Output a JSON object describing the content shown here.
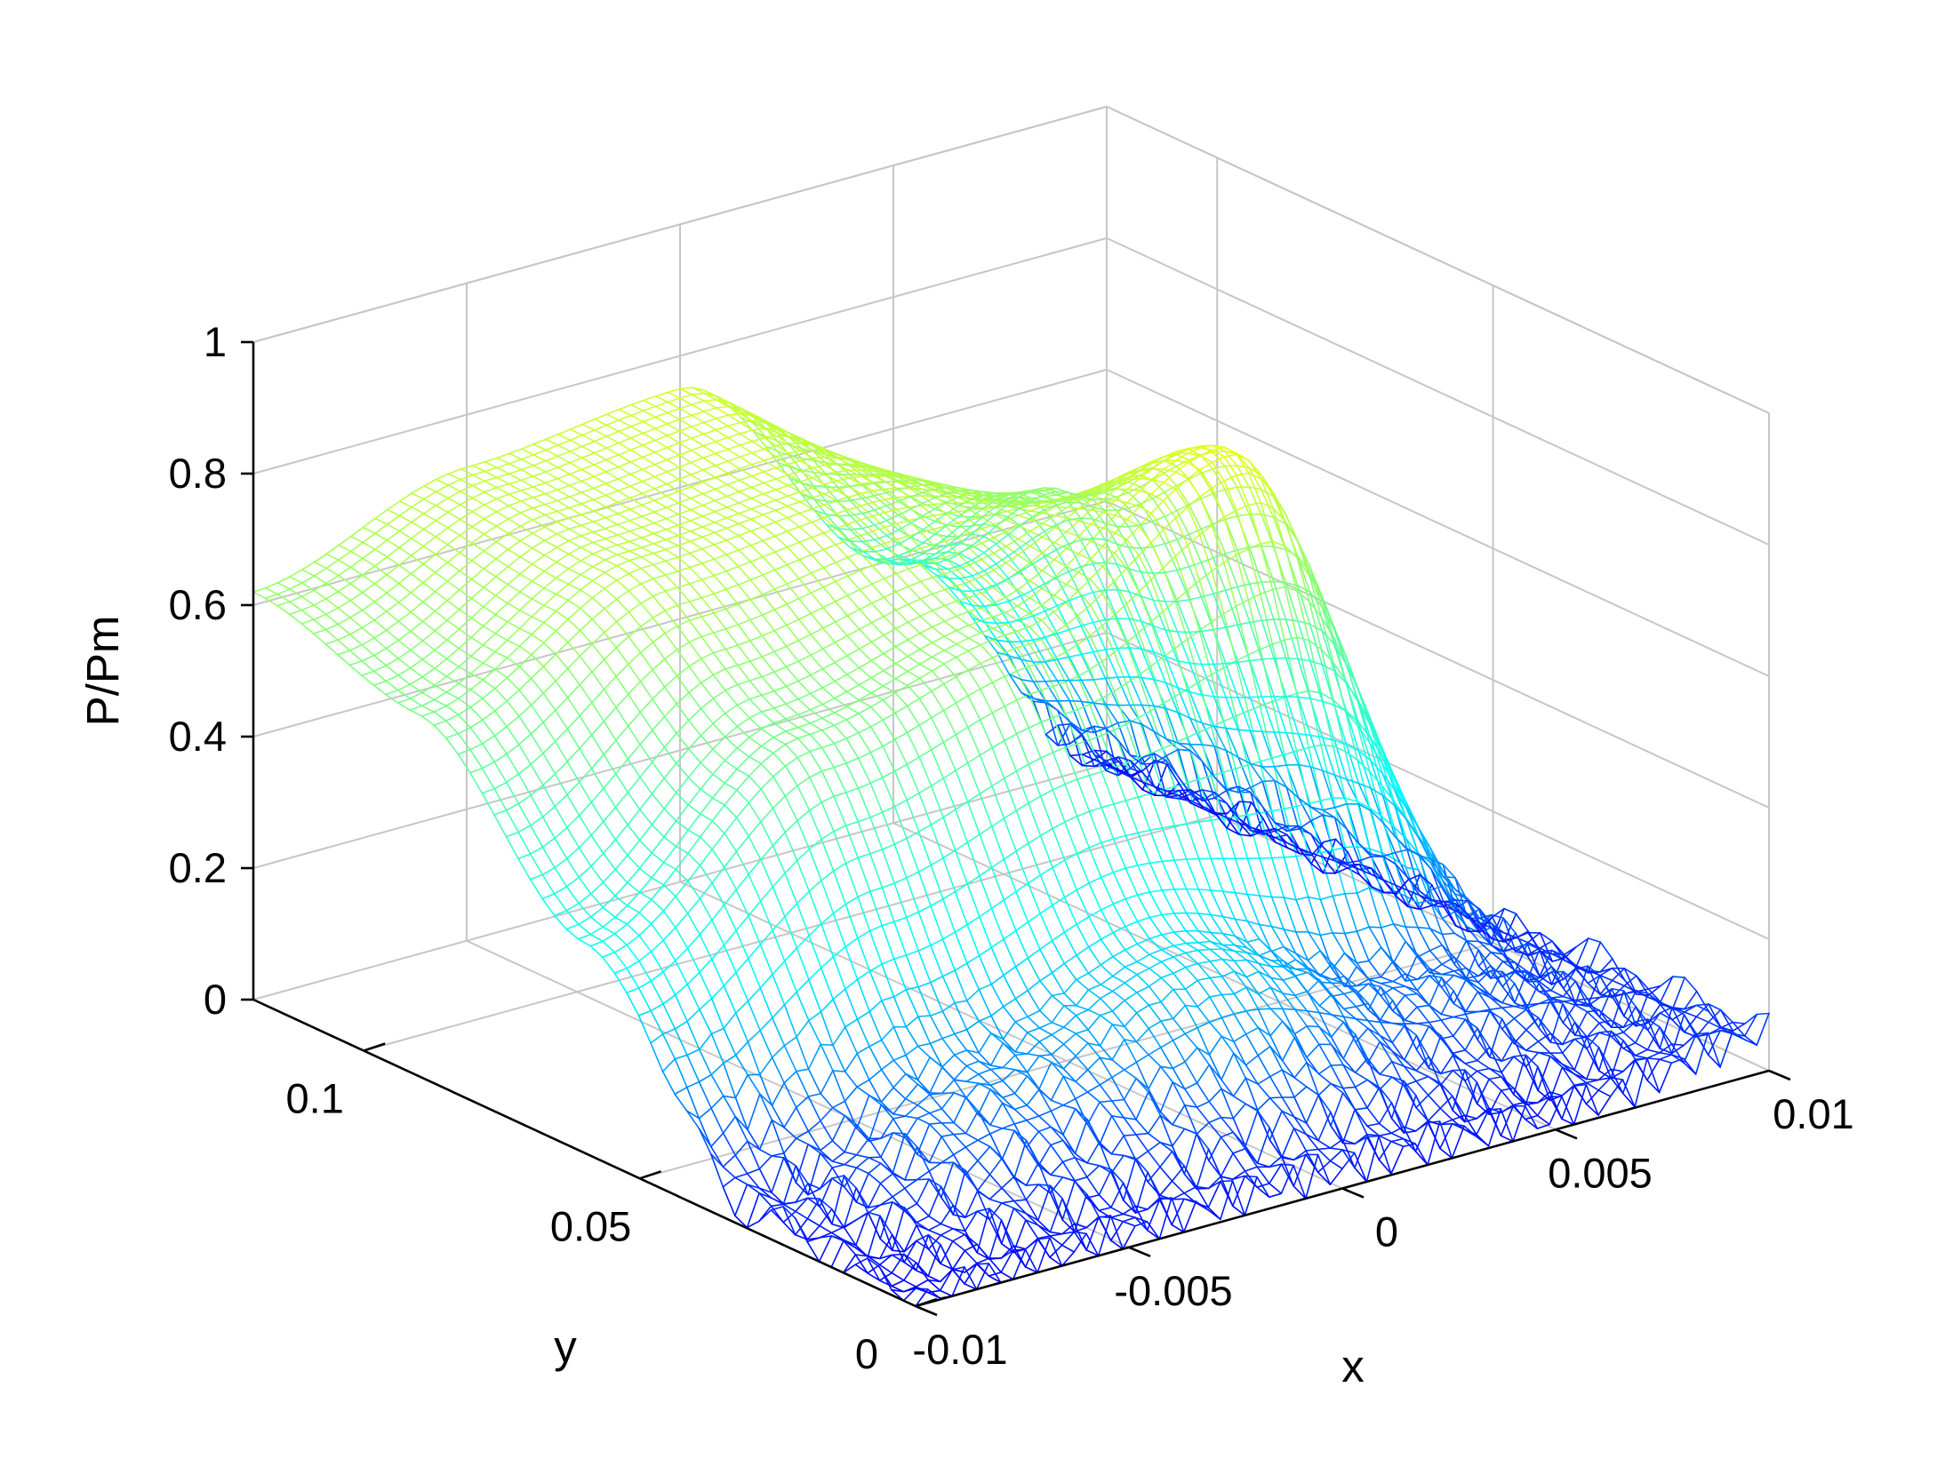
{
  "chart_data": {
    "type": "surface-mesh",
    "xlabel": "x",
    "ylabel": "y",
    "zlabel": "P/Pm",
    "xlim": [
      -0.01,
      0.01
    ],
    "ylim": [
      0,
      0.12
    ],
    "zlim": [
      0,
      1
    ],
    "x_ticks": [
      -0.01,
      -0.005,
      0,
      0.005,
      0.01
    ],
    "x_tick_labels": [
      "-0.01",
      "-0.005",
      "0",
      "0.005",
      "0.01"
    ],
    "y_ticks": [
      0,
      0.05,
      0.1
    ],
    "y_tick_labels": [
      "0",
      "0.05",
      "0.1"
    ],
    "z_ticks": [
      0,
      0.2,
      0.4,
      0.6,
      0.8,
      1
    ],
    "z_tick_labels": [
      "0",
      "0.2",
      "0.4",
      "0.6",
      "0.8",
      "1"
    ],
    "grid": true,
    "colormap": "jet",
    "colormap_stops": [
      "#0000ff",
      "#00ffff",
      "#80ff80",
      "#ffff00"
    ],
    "surface_samples": {
      "x": [
        -0.01,
        -0.005,
        0,
        0.005,
        0.01
      ],
      "y": [
        0,
        0.03,
        0.06,
        0.09,
        0.12
      ],
      "z": [
        [
          0.0,
          0.02,
          0.03,
          0.02,
          0.06
        ],
        [
          0.03,
          0.15,
          0.25,
          0.12,
          0.05
        ],
        [
          0.32,
          0.55,
          0.62,
          0.8,
          0.02
        ],
        [
          0.55,
          0.7,
          0.72,
          0.62,
          0.01
        ],
        [
          0.62,
          0.72,
          0.75,
          0.4,
          0.01
        ]
      ]
    }
  }
}
